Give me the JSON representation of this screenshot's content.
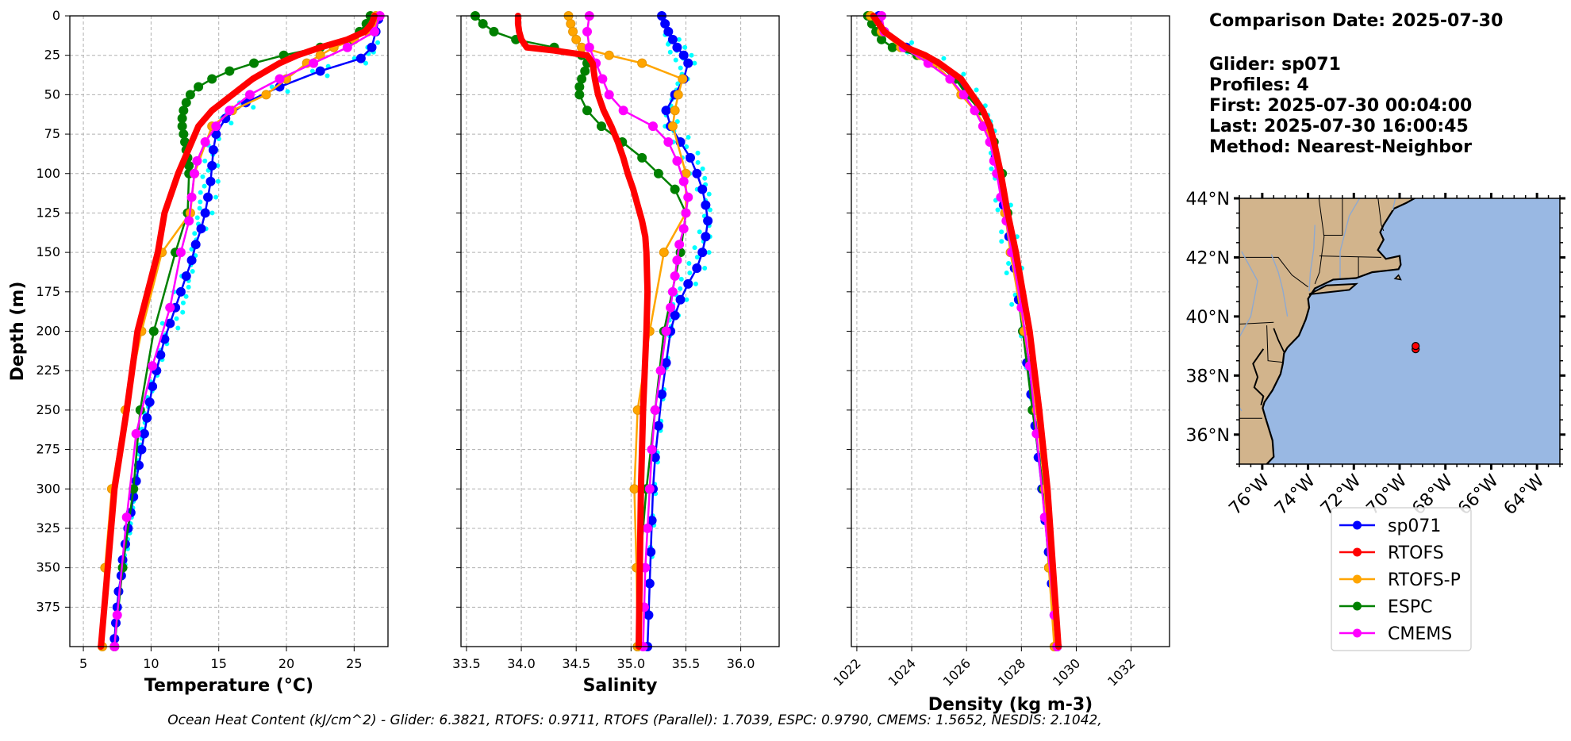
{
  "info": {
    "comparison_date": "Comparison Date: 2025-07-30",
    "glider": "Glider: sp071",
    "profiles": "Profiles: 4",
    "first": "First: 2025-07-30 00:04:00",
    "last": "Last: 2025-07-30 16:00:45",
    "method": "Method: Nearest-Neighbor"
  },
  "footer": "Ocean Heat Content (kJ/cm^2) - Glider: 6.3821,  RTOFS: 0.9711,  RTOFS (Parallel): 1.7039,  ESPC: 0.9790,  CMEMS: 1.5652,  NESDIS: 2.1042,",
  "colors": {
    "sp071": "#0000ff",
    "RTOFS": "#ff0000",
    "RTOFS-P": "#ffa500",
    "ESPC": "#008000",
    "CMEMS": "#ff00ff",
    "obs": "#00ffff",
    "land": "#d2b48c",
    "ocean": "#99b8e3"
  },
  "legend": [
    "sp071",
    "RTOFS",
    "RTOFS-P",
    "ESPC",
    "CMEMS"
  ],
  "map": {
    "lat_labels": [
      "44°N",
      "42°N",
      "40°N",
      "38°N",
      "36°N"
    ],
    "lon_labels": [
      "76°W",
      "74°W",
      "72°W",
      "70°W",
      "68°W",
      "66°W",
      "64°W"
    ],
    "lon_range": [
      -77,
      -63
    ],
    "lat_range": [
      35,
      44
    ],
    "glider_position": {
      "lon": -69.3,
      "lat": 39
    }
  },
  "chart_data": [
    {
      "type": "line",
      "name": "temperature",
      "xlabel": "Temperature (°C)",
      "ylabel": "Depth (m)",
      "xlim": [
        4,
        27.5
      ],
      "ylim": [
        400,
        0
      ],
      "xticks": [
        5,
        10,
        15,
        20,
        25
      ],
      "yticks": [
        0,
        25,
        50,
        75,
        100,
        125,
        150,
        175,
        200,
        225,
        250,
        275,
        300,
        325,
        350,
        375
      ],
      "series": [
        {
          "name": "sp071",
          "depth": [
            2,
            10,
            20,
            27,
            35,
            45,
            55,
            65,
            75,
            85,
            95,
            105,
            115,
            125,
            135,
            145,
            155,
            165,
            175,
            185,
            195,
            205,
            215,
            225,
            235,
            245,
            255,
            265,
            275,
            285,
            295,
            305,
            315,
            325,
            335,
            345,
            355,
            365,
            375,
            385,
            395
          ],
          "values": [
            26.8,
            26.6,
            26.3,
            25.5,
            22.5,
            19.5,
            17.0,
            15.5,
            14.8,
            14.6,
            14.5,
            14.4,
            14.2,
            14.0,
            13.7,
            13.3,
            13.0,
            12.6,
            12.2,
            11.8,
            11.4,
            11.0,
            10.7,
            10.4,
            10.1,
            9.9,
            9.7,
            9.5,
            9.3,
            9.1,
            8.9,
            8.7,
            8.5,
            8.3,
            8.1,
            7.9,
            7.8,
            7.6,
            7.5,
            7.4,
            7.3
          ]
        },
        {
          "name": "RTOFS",
          "depth": [
            0,
            5,
            10,
            15,
            20,
            25,
            30,
            40,
            50,
            60,
            70,
            80,
            100,
            125,
            150,
            200,
            250,
            300,
            350,
            400
          ],
          "values": [
            26.5,
            26.3,
            25.8,
            24.5,
            22.5,
            20.8,
            19.5,
            17.5,
            16.0,
            14.5,
            13.5,
            13.0,
            12.0,
            11.0,
            10.5,
            9.0,
            8.2,
            7.3,
            6.8,
            6.3
          ]
        },
        {
          "name": "RTOFS-P",
          "depth": [
            0,
            5,
            10,
            15,
            20,
            25,
            30,
            40,
            50,
            60,
            70,
            100,
            125,
            150,
            200,
            250,
            300,
            350,
            400
          ],
          "values": [
            26.6,
            26.4,
            26.0,
            25.0,
            23.5,
            22.5,
            21.5,
            20.0,
            18.5,
            16.0,
            14.5,
            13.2,
            12.9,
            10.8,
            9.3,
            8.1,
            7.1,
            6.6,
            6.4
          ]
        },
        {
          "name": "ESPC",
          "depth": [
            0,
            5,
            10,
            15,
            20,
            25,
            30,
            35,
            40,
            45,
            50,
            55,
            60,
            65,
            70,
            75,
            80,
            85,
            90,
            95,
            100,
            125,
            150,
            200,
            250,
            300,
            350,
            400
          ],
          "values": [
            26.2,
            25.9,
            25.4,
            24.9,
            22.5,
            19.8,
            17.6,
            15.8,
            14.5,
            13.5,
            12.9,
            12.6,
            12.4,
            12.3,
            12.3,
            12.4,
            12.5,
            12.6,
            12.7,
            12.8,
            12.8,
            12.7,
            11.8,
            10.2,
            9.2,
            8.7,
            7.9,
            7.3
          ]
        },
        {
          "name": "CMEMS",
          "depth": [
            0,
            10,
            20,
            30,
            40,
            50,
            60,
            70,
            80,
            92,
            100,
            115,
            130,
            150,
            185,
            222,
            265,
            318,
            380,
            400
          ],
          "values": [
            26.9,
            26.5,
            24.5,
            22.0,
            19.5,
            17.3,
            15.8,
            14.8,
            14.0,
            13.4,
            13.2,
            13.0,
            12.8,
            12.2,
            11.4,
            10.1,
            8.9,
            8.2,
            7.5,
            7.3
          ]
        }
      ]
    },
    {
      "type": "line",
      "name": "salinity",
      "xlabel": "Salinity",
      "ylim": [
        400,
        0
      ],
      "xlim": [
        33.45,
        36.35
      ],
      "xticks": [
        33.5,
        34.0,
        34.5,
        35.0,
        35.5,
        36.0
      ],
      "series": [
        {
          "name": "sp071",
          "depth": [
            0,
            5,
            10,
            15,
            20,
            25,
            30,
            40,
            50,
            60,
            70,
            80,
            90,
            100,
            110,
            120,
            130,
            140,
            150,
            160,
            170,
            180,
            190,
            200,
            220,
            240,
            260,
            280,
            300,
            320,
            340,
            360,
            380,
            400
          ],
          "values": [
            35.28,
            35.31,
            35.34,
            35.38,
            35.42,
            35.48,
            35.52,
            35.48,
            35.4,
            35.32,
            35.36,
            35.45,
            35.54,
            35.6,
            35.65,
            35.68,
            35.7,
            35.68,
            35.65,
            35.6,
            35.52,
            35.45,
            35.4,
            35.36,
            35.32,
            35.28,
            35.25,
            35.22,
            35.2,
            35.19,
            35.18,
            35.17,
            35.16,
            35.15
          ]
        },
        {
          "name": "RTOFS",
          "depth": [
            0,
            5,
            10,
            15,
            20,
            22,
            25,
            30,
            40,
            50,
            60,
            70,
            80,
            90,
            100,
            110,
            120,
            130,
            140,
            150,
            175,
            200,
            250,
            300,
            350,
            400
          ],
          "values": [
            33.97,
            33.97,
            33.98,
            34.0,
            34.05,
            34.3,
            34.6,
            34.65,
            34.67,
            34.7,
            34.75,
            34.82,
            34.88,
            34.93,
            34.97,
            35.02,
            35.06,
            35.1,
            35.13,
            35.14,
            35.15,
            35.14,
            35.11,
            35.09,
            35.08,
            35.07
          ]
        },
        {
          "name": "RTOFS-P",
          "depth": [
            0,
            5,
            10,
            15,
            20,
            25,
            30,
            40,
            50,
            60,
            70,
            100,
            125,
            150,
            200,
            250,
            300,
            350,
            400
          ],
          "values": [
            34.43,
            34.45,
            34.47,
            34.5,
            34.55,
            34.8,
            35.1,
            35.47,
            35.43,
            35.4,
            35.38,
            35.5,
            35.5,
            35.3,
            35.17,
            35.06,
            35.03,
            35.05,
            35.06
          ]
        },
        {
          "name": "ESPC",
          "depth": [
            0,
            5,
            10,
            15,
            20,
            25,
            30,
            35,
            40,
            45,
            50,
            60,
            70,
            80,
            90,
            100,
            110,
            125,
            150,
            200,
            250,
            300,
            350,
            400
          ],
          "values": [
            33.58,
            33.65,
            33.75,
            33.95,
            34.3,
            34.55,
            34.6,
            34.58,
            34.55,
            34.53,
            34.53,
            34.6,
            34.73,
            34.92,
            35.1,
            35.25,
            35.4,
            35.5,
            35.45,
            35.3,
            35.22,
            35.14,
            35.08,
            35.06
          ]
        },
        {
          "name": "CMEMS",
          "depth": [
            0,
            10,
            20,
            30,
            40,
            50,
            60,
            70,
            80,
            92,
            105,
            115,
            125,
            135,
            145,
            155,
            165,
            175,
            185,
            200,
            225,
            250,
            275,
            300,
            325,
            350,
            375,
            400
          ],
          "values": [
            34.62,
            34.6,
            34.62,
            34.68,
            34.74,
            34.8,
            34.93,
            35.2,
            35.34,
            35.42,
            35.48,
            35.52,
            35.5,
            35.48,
            35.44,
            35.42,
            35.4,
            35.38,
            35.36,
            35.32,
            35.27,
            35.22,
            35.19,
            35.17,
            35.15,
            35.13,
            35.12,
            35.11
          ]
        }
      ]
    },
    {
      "type": "line",
      "name": "density",
      "xlabel": "Density (kg m-3)",
      "ylim": [
        400,
        0
      ],
      "xlim": [
        1021.8,
        1033.4
      ],
      "xticks": [
        1022,
        1024,
        1026,
        1028,
        1030,
        1032
      ],
      "series": [
        {
          "name": "sp071",
          "depth": [
            0,
            10,
            20,
            30,
            40,
            50,
            60,
            70,
            80,
            90,
            100,
            120,
            140,
            160,
            180,
            200,
            220,
            240,
            260,
            280,
            300,
            320,
            340,
            360,
            380,
            400
          ],
          "values": [
            1022.8,
            1023.0,
            1023.8,
            1024.9,
            1025.6,
            1026.1,
            1026.5,
            1026.8,
            1026.95,
            1027.05,
            1027.15,
            1027.35,
            1027.55,
            1027.75,
            1027.9,
            1028.05,
            1028.2,
            1028.35,
            1028.5,
            1028.62,
            1028.75,
            1028.87,
            1028.99,
            1029.1,
            1029.2,
            1029.3
          ]
        },
        {
          "name": "RTOFS",
          "depth": [
            0,
            10,
            20,
            25,
            30,
            40,
            50,
            60,
            70,
            80,
            100,
            125,
            150,
            200,
            250,
            300,
            350,
            400
          ],
          "values": [
            1022.6,
            1023.0,
            1023.8,
            1024.5,
            1025.0,
            1025.8,
            1026.2,
            1026.6,
            1026.85,
            1027.0,
            1027.25,
            1027.5,
            1027.8,
            1028.3,
            1028.65,
            1028.95,
            1029.15,
            1029.35
          ]
        },
        {
          "name": "RTOFS-P",
          "depth": [
            0,
            10,
            20,
            25,
            30,
            40,
            50,
            60,
            70,
            100,
            125,
            150,
            200,
            250,
            300,
            350,
            400
          ],
          "values": [
            1022.5,
            1022.9,
            1023.6,
            1024.3,
            1024.8,
            1025.4,
            1025.8,
            1026.3,
            1026.7,
            1027.2,
            1027.4,
            1027.6,
            1028.1,
            1028.55,
            1028.85,
            1029.0,
            1029.2
          ]
        },
        {
          "name": "ESPC",
          "depth": [
            0,
            5,
            10,
            15,
            20,
            25,
            30,
            40,
            50,
            60,
            70,
            80,
            100,
            125,
            150,
            200,
            250,
            300,
            350,
            400
          ],
          "values": [
            1022.4,
            1022.55,
            1022.7,
            1022.9,
            1023.3,
            1024.2,
            1024.9,
            1025.6,
            1026.0,
            1026.5,
            1026.8,
            1027.0,
            1027.3,
            1027.5,
            1027.65,
            1028.05,
            1028.4,
            1028.8,
            1029.0,
            1029.3
          ]
        },
        {
          "name": "CMEMS",
          "depth": [
            0,
            10,
            20,
            30,
            40,
            50,
            60,
            70,
            80,
            92,
            100,
            115,
            130,
            150,
            185,
            222,
            265,
            318,
            380,
            400
          ],
          "values": [
            1022.9,
            1023.0,
            1023.7,
            1024.6,
            1025.4,
            1025.9,
            1026.3,
            1026.6,
            1026.85,
            1027.0,
            1027.1,
            1027.25,
            1027.45,
            1027.65,
            1028.0,
            1028.3,
            1028.55,
            1028.85,
            1029.2,
            1029.3
          ]
        }
      ]
    }
  ]
}
